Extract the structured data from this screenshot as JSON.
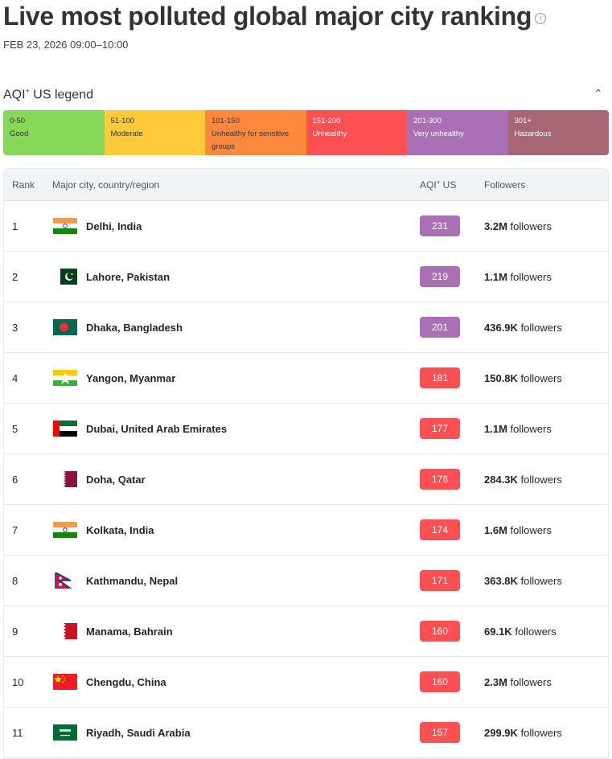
{
  "title": "Live most polluted global major city ranking",
  "date": "FEB 23, 2026 09:00–10:00",
  "legend": {
    "title": "AQI",
    "sup": "+",
    "title_rest": " US legend",
    "items": [
      {
        "range": "0-50",
        "label": "Good",
        "color": "#87d858",
        "text": "#333"
      },
      {
        "range": "51-100",
        "label": "Moderate",
        "color": "#fdcb3a",
        "text": "#333"
      },
      {
        "range": "101-150",
        "label": "Unhealthy for sensitive groups",
        "color": "#fe893c",
        "text": "#333"
      },
      {
        "range": "151-200",
        "label": "Unhealthy",
        "color": "#fe5053",
        "text": "#fff"
      },
      {
        "range": "201-300",
        "label": "Very unhealthy",
        "color": "#a970b5",
        "text": "#fff"
      },
      {
        "range": "301+",
        "label": "Hazardous",
        "color": "#a66673",
        "text": "#fff"
      }
    ]
  },
  "columns": {
    "rank": "Rank",
    "city": "Major city, country/region",
    "aqi": "AQI",
    "aqi_sup": "+",
    "aqi_rest": " US",
    "followers": "Followers"
  },
  "followers_suffix": "followers",
  "rows": [
    {
      "rank": "1",
      "city": "Delhi, India",
      "flag": "india",
      "aqi": "231",
      "color": "#a970b5",
      "followers": "3.2M"
    },
    {
      "rank": "2",
      "city": "Lahore, Pakistan",
      "flag": "pakistan",
      "aqi": "219",
      "color": "#a970b5",
      "followers": "1.1M"
    },
    {
      "rank": "3",
      "city": "Dhaka, Bangladesh",
      "flag": "bangladesh",
      "aqi": "201",
      "color": "#a970b5",
      "followers": "436.9K"
    },
    {
      "rank": "4",
      "city": "Yangon, Myanmar",
      "flag": "myanmar",
      "aqi": "181",
      "color": "#fe5053",
      "followers": "150.8K"
    },
    {
      "rank": "5",
      "city": "Dubai, United Arab Emirates",
      "flag": "uae",
      "aqi": "177",
      "color": "#fe5053",
      "followers": "1.1M"
    },
    {
      "rank": "6",
      "city": "Doha, Qatar",
      "flag": "qatar",
      "aqi": "176",
      "color": "#fe5053",
      "followers": "284.3K"
    },
    {
      "rank": "7",
      "city": "Kolkata, India",
      "flag": "india",
      "aqi": "174",
      "color": "#fe5053",
      "followers": "1.6M"
    },
    {
      "rank": "8",
      "city": "Kathmandu, Nepal",
      "flag": "nepal",
      "aqi": "171",
      "color": "#fe5053",
      "followers": "363.8K"
    },
    {
      "rank": "9",
      "city": "Manama, Bahrain",
      "flag": "bahrain",
      "aqi": "160",
      "color": "#fe5053",
      "followers": "69.1K"
    },
    {
      "rank": "10",
      "city": "Chengdu, China",
      "flag": "china",
      "aqi": "160",
      "color": "#fe5053",
      "followers": "2.3M"
    },
    {
      "rank": "11",
      "city": "Riyadh, Saudi Arabia",
      "flag": "saudi-arabia",
      "aqi": "157",
      "color": "#fe5053",
      "followers": "299.9K"
    }
  ]
}
